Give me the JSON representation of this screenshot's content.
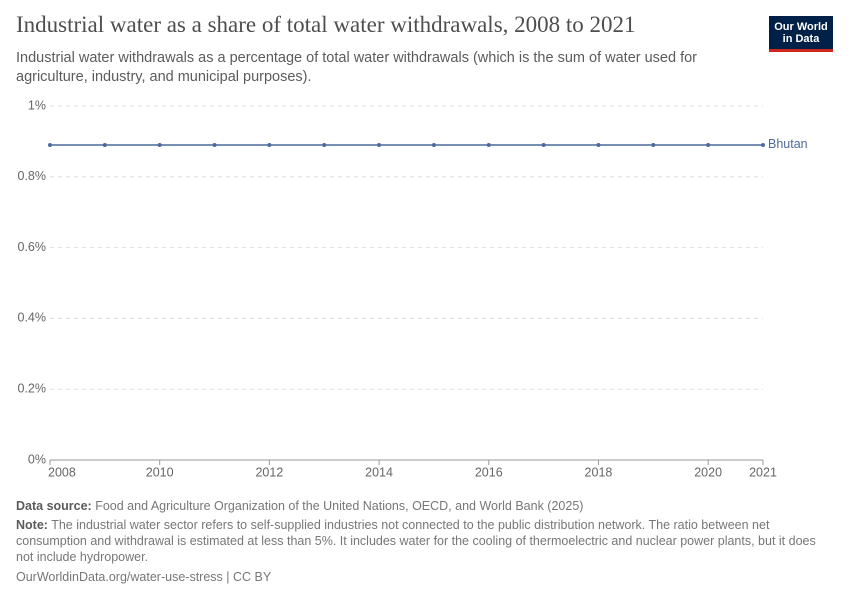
{
  "chart_data": {
    "type": "line",
    "title": "Industrial water as a share of total water withdrawals, 2008 to 2021",
    "subtitle": "Industrial water withdrawals as a percentage of total water withdrawals (which is the sum of water used for agriculture, industry, and municipal purposes).",
    "logo": [
      "Our World",
      "in Data"
    ],
    "x": [
      2008,
      2009,
      2010,
      2011,
      2012,
      2013,
      2014,
      2015,
      2016,
      2017,
      2018,
      2019,
      2020,
      2021
    ],
    "series": [
      {
        "name": "Bhutan",
        "color": "#4c6a9c",
        "values": [
          0.89,
          0.89,
          0.89,
          0.89,
          0.89,
          0.89,
          0.89,
          0.89,
          0.89,
          0.89,
          0.89,
          0.89,
          0.89,
          0.89
        ]
      }
    ],
    "xlim": [
      2008,
      2021
    ],
    "xticks": [
      2008,
      2010,
      2012,
      2014,
      2016,
      2018,
      2020,
      2021
    ],
    "ylim": [
      0,
      1
    ],
    "yticks": [
      {
        "value": 0,
        "label": "0%"
      },
      {
        "value": 0.2,
        "label": "0.2%"
      },
      {
        "value": 0.4,
        "label": "0.4%"
      },
      {
        "value": 0.6,
        "label": "0.6%"
      },
      {
        "value": 0.8,
        "label": "0.8%"
      },
      {
        "value": 1,
        "label": "1%"
      }
    ],
    "grid": true,
    "source_label": "Data source:",
    "source": "Food and Agriculture Organization of the United Nations, OECD, and World Bank (2025)",
    "note_label": "Note:",
    "note": "The industrial water sector refers to self-supplied industries not connected to the public distribution network. The ratio between net consumption and withdrawal is estimated at less than 5%. It includes water for the cooling of thermoelectric and nuclear power plants, but it does not include hydropower.",
    "footer": "OurWorldinData.org/water-use-stress | CC BY"
  }
}
